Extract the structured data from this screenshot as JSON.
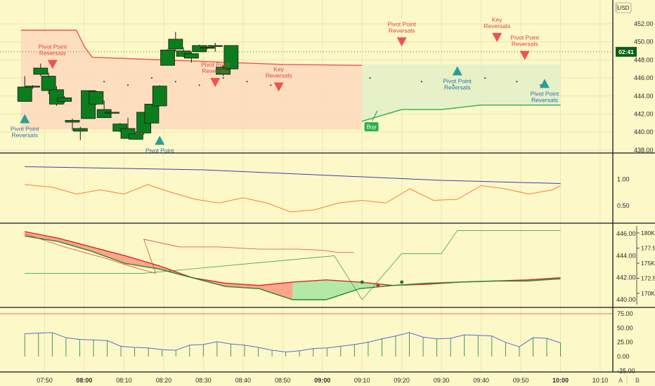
{
  "currency_label": "USD",
  "last_price_label": "02:41",
  "buy_label": "Buy",
  "bottom_buttons": {
    "a": "A",
    "b": "B"
  },
  "colors": {
    "background": "#fdf8c8",
    "up": "#0b7d1c",
    "down": "#0b7d1c",
    "bear_arrow": "#ef5350",
    "bull_arrow": "#2a9d99",
    "resistance": "#ef5350",
    "support": "#2eae4e",
    "pane_border": "#131722",
    "oscillator_blue": "#3f3fb0",
    "oscillator_orange": "#ff7d33",
    "cloud_red": "#ff8a75",
    "cloud_green": "#9be39b"
  },
  "time_axis": [
    "07:50",
    "08:00",
    "08:10",
    "08:20",
    "08:30",
    "08:40",
    "08:50",
    "09:00",
    "09:10",
    "09:20",
    "09:30",
    "09:40",
    "09:50",
    "10:00",
    "10:10"
  ],
  "time_axis_bold": [
    "08:00",
    "09:00",
    "10:00"
  ],
  "pane1_ticks": [
    "452.00",
    "450.00",
    "448.00",
    "446.00",
    "444.00",
    "442.00",
    "440.00",
    "438.00"
  ],
  "pane2_ticks": [
    "1.00",
    "0.50"
  ],
  "pane3_ticks_right": [
    "180K",
    "177.5K",
    "175K",
    "172.5K",
    "170K"
  ],
  "pane3_ticks_left": [
    "446.00",
    "444.00",
    "442.00",
    "440.00"
  ],
  "pane4_ticks": [
    "75.00",
    "50.00",
    "25.00",
    "0.00",
    "-25.00"
  ],
  "chart_data": {
    "type": "candlestick",
    "interval_minutes": 2,
    "candles": [
      {
        "t": "07:45",
        "o": 443.4,
        "h": 446.2,
        "l": 443.4,
        "c": 445.0
      },
      {
        "t": "07:47",
        "o": 445.0,
        "h": 445.2,
        "l": 444.8,
        "c": 445.1
      },
      {
        "t": "07:49",
        "o": 446.4,
        "h": 447.6,
        "l": 446.2,
        "c": 447.1
      },
      {
        "t": "07:51",
        "o": 446.2,
        "h": 446.6,
        "l": 444.2,
        "c": 444.6
      },
      {
        "t": "07:53",
        "o": 444.7,
        "h": 445.1,
        "l": 442.9,
        "c": 443.1
      },
      {
        "t": "07:55",
        "o": 443.8,
        "h": 444.0,
        "l": 443.2,
        "c": 443.4
      },
      {
        "t": "07:57",
        "o": 441.3,
        "h": 441.5,
        "l": 440.2,
        "c": 441.1
      },
      {
        "t": "07:59",
        "o": 440.4,
        "h": 440.6,
        "l": 439.1,
        "c": 440.1
      },
      {
        "t": "08:01",
        "o": 441.5,
        "h": 444.6,
        "l": 441.5,
        "c": 444.6
      },
      {
        "t": "08:03",
        "o": 443.1,
        "h": 444.6,
        "l": 443.0,
        "c": 444.5
      },
      {
        "t": "08:05",
        "o": 442.5,
        "h": 443.5,
        "l": 441.6,
        "c": 441.6
      },
      {
        "t": "08:07",
        "o": 442.2,
        "h": 442.2,
        "l": 442.1,
        "c": 442.2
      },
      {
        "t": "08:09",
        "o": 440.9,
        "h": 441.0,
        "l": 440.0,
        "c": 440.1
      },
      {
        "t": "08:11",
        "o": 440.4,
        "h": 441.6,
        "l": 439.3,
        "c": 439.3
      },
      {
        "t": "08:13",
        "o": 439.8,
        "h": 440.1,
        "l": 439.2,
        "c": 439.2
      },
      {
        "t": "08:15",
        "o": 439.9,
        "h": 442.2,
        "l": 439.7,
        "c": 442.2
      },
      {
        "t": "08:17",
        "o": 441.0,
        "h": 443.1,
        "l": 441.0,
        "c": 443.1
      },
      {
        "t": "08:19",
        "o": 442.9,
        "h": 445.2,
        "l": 442.9,
        "c": 445.1
      },
      {
        "t": "08:21",
        "o": 447.4,
        "h": 449.2,
        "l": 447.4,
        "c": 449.1
      },
      {
        "t": "08:23",
        "o": 450.3,
        "h": 451.1,
        "l": 448.9,
        "c": 449.2
      },
      {
        "t": "08:25",
        "o": 449.0,
        "h": 449.4,
        "l": 448.3,
        "c": 448.4
      },
      {
        "t": "08:27",
        "o": 448.7,
        "h": 448.9,
        "l": 447.7,
        "c": 448.2
      },
      {
        "t": "08:29",
        "o": 448.9,
        "h": 449.7,
        "l": 448.9,
        "c": 449.6
      },
      {
        "t": "08:31",
        "o": 449.4,
        "h": 449.6,
        "l": 449.2,
        "c": 449.4
      },
      {
        "t": "08:33",
        "o": 449.6,
        "h": 449.9,
        "l": 448.9,
        "c": 449.5
      },
      {
        "t": "08:35",
        "o": 447.2,
        "h": 447.4,
        "l": 446.2,
        "c": 446.4
      },
      {
        "t": "08:37",
        "o": 447.0,
        "h": 449.6,
        "l": 447.0,
        "c": 449.6
      }
    ],
    "resistance": [
      {
        "t": "07:44",
        "v": 451.3
      },
      {
        "t": "07:58",
        "v": 451.3
      },
      {
        "t": "08:00",
        "v": 449.5
      },
      {
        "t": "08:02",
        "v": 448.3
      },
      {
        "t": "08:50",
        "v": 447.5
      },
      {
        "t": "09:10",
        "v": 447.4
      }
    ],
    "support": [
      {
        "t": "09:10",
        "v": 441.2
      },
      {
        "t": "09:20",
        "v": 442.5
      },
      {
        "t": "09:30",
        "v": 442.5
      },
      {
        "t": "09:40",
        "v": 443.0
      },
      {
        "t": "10:00",
        "v": 443.0
      }
    ],
    "annotations": [
      {
        "label": "Pivot Point Reversals",
        "type": "bull",
        "t": "07:45",
        "v": 442.0
      },
      {
        "label": "Pivot Point Reversals",
        "type": "bear",
        "t": "07:52",
        "v": 448.0
      },
      {
        "label": "Pivot Point",
        "type": "bull",
        "t": "08:19",
        "v": 439.6
      },
      {
        "label": "Pivot Point Reversals",
        "type": "bear",
        "t": "08:33",
        "v": 446.0
      },
      {
        "label": "Key Reversals",
        "type": "bear",
        "t": "08:49",
        "v": 445.5
      },
      {
        "label": "Pivot Point Reversals",
        "type": "bear",
        "t": "09:20",
        "v": 450.5
      },
      {
        "label": "Pivot Point Reversals",
        "type": "bull",
        "t": "09:34",
        "v": 447.3
      },
      {
        "label": "Key Reversals",
        "type": "bear",
        "t": "09:44",
        "v": 451.0
      },
      {
        "label": "Pivot Point Reversals",
        "type": "bear",
        "t": "09:51",
        "v": 449.0
      },
      {
        "label": "Pivot Point Reversals",
        "type": "bull",
        "t": "09:56",
        "v": 445.9
      }
    ],
    "oscillator": {
      "ylim": [
        0.0,
        1.4
      ],
      "series": [
        {
          "color": "blue",
          "x": [
            "07:45",
            "08:30",
            "09:00",
            "09:30",
            "10:00"
          ],
          "values": [
            1.24,
            1.18,
            1.08,
            0.98,
            0.92
          ]
        },
        {
          "color": "orange",
          "x": [
            "07:45",
            "07:52",
            "07:58",
            "08:04",
            "08:10",
            "08:16",
            "08:22",
            "08:28",
            "08:34",
            "08:40",
            "08:46",
            "08:52",
            "08:58",
            "09:04",
            "09:10",
            "09:16",
            "09:22",
            "09:28",
            "09:34",
            "09:40",
            "09:46",
            "09:52",
            "09:58",
            "10:00"
          ],
          "values": [
            0.9,
            0.85,
            0.72,
            0.8,
            0.72,
            0.9,
            0.75,
            0.62,
            0.55,
            0.65,
            0.55,
            0.38,
            0.42,
            0.55,
            0.6,
            0.55,
            0.82,
            0.6,
            0.62,
            0.88,
            0.82,
            0.72,
            0.8,
            0.88
          ]
        }
      ]
    },
    "cloud_pane": {
      "ylim": [
        439.5,
        446.5
      ],
      "fast_line": [
        446.2,
        445.6,
        444.8,
        444.0,
        443.1,
        442.0,
        441.5,
        441.3,
        441.6,
        441.8,
        441.6,
        441.3,
        441.4,
        441.6,
        441.7,
        441.8,
        442.0
      ],
      "slow_line": [
        445.8,
        445.3,
        444.4,
        443.3,
        442.8,
        442.0,
        441.2,
        441.0,
        440.0,
        440.0,
        441.0,
        441.3,
        441.5,
        441.6,
        441.7,
        441.7,
        441.9
      ]
    },
    "histogram": {
      "ylim": [
        -25,
        75
      ],
      "values": [
        40,
        41,
        42,
        33,
        30,
        29,
        28,
        18,
        16,
        15,
        12,
        11,
        20,
        21,
        26,
        22,
        20,
        16,
        11,
        8,
        10,
        14,
        15,
        18,
        21,
        25,
        31,
        36,
        42,
        34,
        31,
        32,
        38,
        37,
        36,
        25,
        17,
        33,
        32,
        24
      ]
    }
  }
}
